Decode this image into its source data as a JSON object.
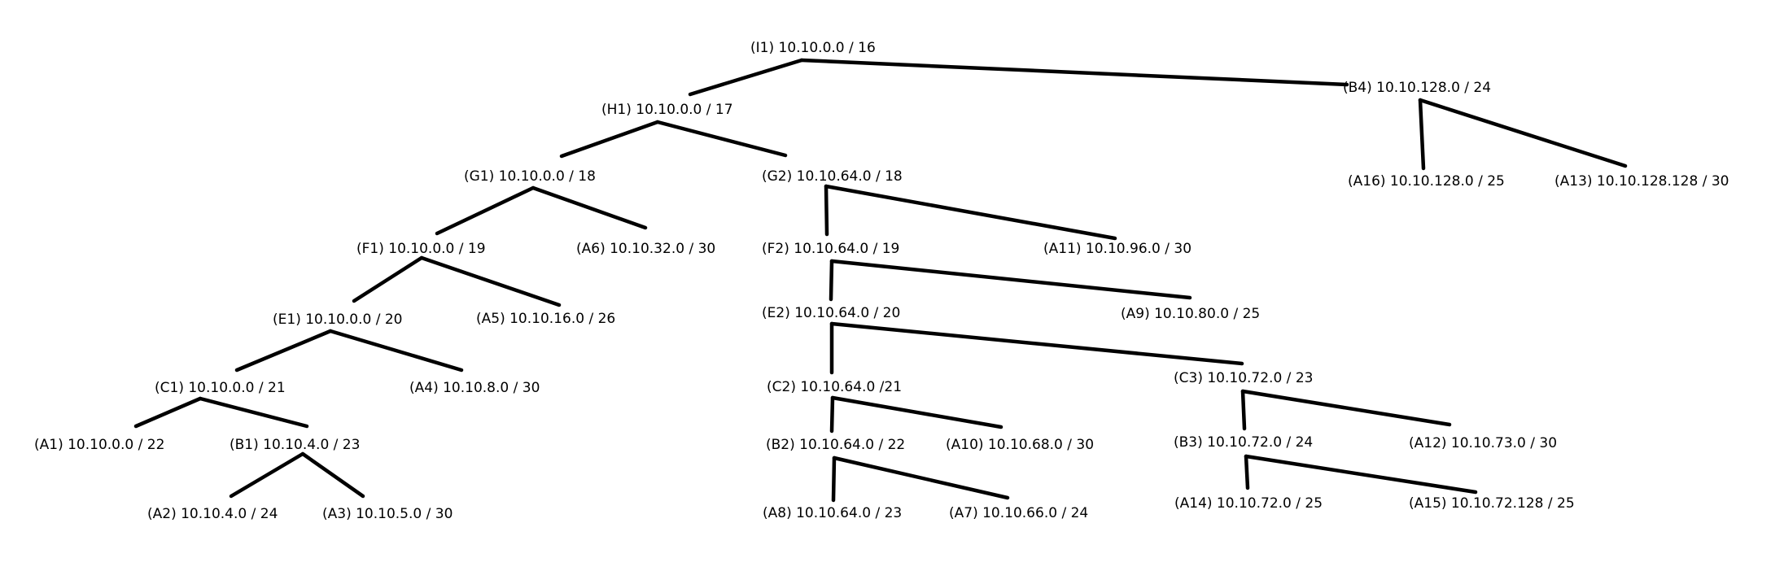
{
  "diagram": {
    "type": "tree",
    "nodes": [
      {
        "id": "I1",
        "label": "(I1) 10.10.0.0 / 16"
      },
      {
        "id": "H1",
        "label": "(H1) 10.10.0.0 / 17"
      },
      {
        "id": "B4",
        "label": "(B4) 10.10.128.0 / 24"
      },
      {
        "id": "G1",
        "label": "(G1) 10.10.0.0 / 18"
      },
      {
        "id": "G2",
        "label": "(G2) 10.10.64.0 / 18"
      },
      {
        "id": "A16",
        "label": "(A16) 10.10.128.0 / 25"
      },
      {
        "id": "A13",
        "label": "(A13) 10.10.128.128 / 30"
      },
      {
        "id": "F1",
        "label": "(F1) 10.10.0.0 / 19"
      },
      {
        "id": "A6",
        "label": "(A6) 10.10.32.0 / 30"
      },
      {
        "id": "F2",
        "label": "(F2) 10.10.64.0 / 19"
      },
      {
        "id": "A11",
        "label": "(A11) 10.10.96.0 / 30"
      },
      {
        "id": "E1",
        "label": "(E1) 10.10.0.0 / 20"
      },
      {
        "id": "A5",
        "label": "(A5) 10.10.16.0 / 26"
      },
      {
        "id": "E2",
        "label": "(E2) 10.10.64.0 / 20"
      },
      {
        "id": "A9",
        "label": "(A9) 10.10.80.0 / 25"
      },
      {
        "id": "C1",
        "label": "(C1) 10.10.0.0 / 21"
      },
      {
        "id": "A4",
        "label": "(A4) 10.10.8.0 / 30"
      },
      {
        "id": "C2",
        "label": "(C2) 10.10.64.0 /21"
      },
      {
        "id": "C3",
        "label": "(C3) 10.10.72.0 / 23"
      },
      {
        "id": "A1",
        "label": "(A1) 10.10.0.0 / 22"
      },
      {
        "id": "B1",
        "label": "(B1) 10.10.4.0 / 23"
      },
      {
        "id": "B2",
        "label": "(B2) 10.10.64.0 / 22"
      },
      {
        "id": "A10",
        "label": "(A10) 10.10.68.0 / 30"
      },
      {
        "id": "B3",
        "label": "(B3) 10.10.72.0 / 24"
      },
      {
        "id": "A12",
        "label": "(A12) 10.10.73.0 / 30"
      },
      {
        "id": "A2",
        "label": "(A2) 10.10.4.0 / 24"
      },
      {
        "id": "A3",
        "label": "(A3) 10.10.5.0 / 30"
      },
      {
        "id": "A8",
        "label": "(A8) 10.10.64.0 / 23"
      },
      {
        "id": "A7",
        "label": "(A7) 10.10.66.0 / 24"
      },
      {
        "id": "A14",
        "label": "(A14) 10.10.72.0 / 25"
      },
      {
        "id": "A15",
        "label": "(A15) 10.10.72.128 / 25"
      }
    ],
    "edges": [
      [
        "I1",
        "H1"
      ],
      [
        "I1",
        "B4"
      ],
      [
        "H1",
        "G1"
      ],
      [
        "H1",
        "G2"
      ],
      [
        "B4",
        "A16"
      ],
      [
        "B4",
        "A13"
      ],
      [
        "G1",
        "F1"
      ],
      [
        "G1",
        "A6"
      ],
      [
        "G2",
        "F2"
      ],
      [
        "G2",
        "A11"
      ],
      [
        "F1",
        "E1"
      ],
      [
        "F1",
        "A5"
      ],
      [
        "F2",
        "E2"
      ],
      [
        "F2",
        "A9"
      ],
      [
        "E1",
        "C1"
      ],
      [
        "E1",
        "A4"
      ],
      [
        "E2",
        "C2"
      ],
      [
        "E2",
        "C3"
      ],
      [
        "C1",
        "A1"
      ],
      [
        "C1",
        "B1"
      ],
      [
        "C2",
        "B2"
      ],
      [
        "C2",
        "A10"
      ],
      [
        "C3",
        "B3"
      ],
      [
        "C3",
        "A12"
      ],
      [
        "B1",
        "A2"
      ],
      [
        "B1",
        "A3"
      ],
      [
        "B2",
        "A8"
      ],
      [
        "B2",
        "A7"
      ],
      [
        "B3",
        "A14"
      ],
      [
        "B3",
        "A15"
      ]
    ]
  }
}
